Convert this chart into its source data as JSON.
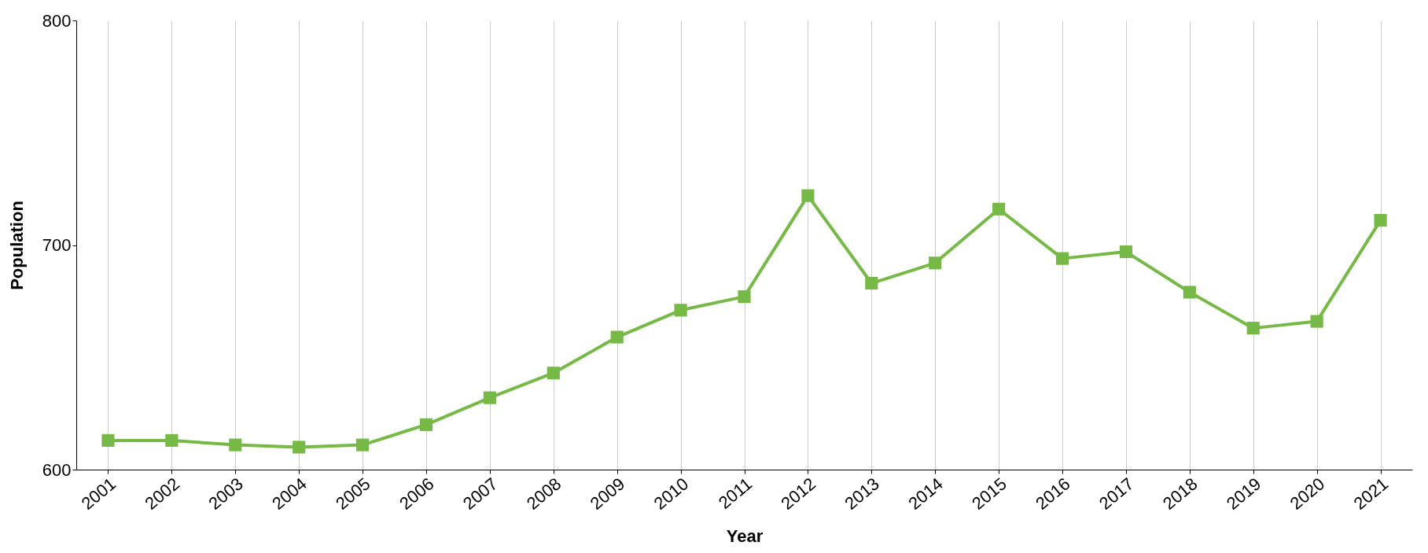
{
  "chart_data": {
    "type": "line",
    "xlabel": "Year",
    "ylabel": "Population",
    "categories": [
      "2001",
      "2002",
      "2003",
      "2004",
      "2005",
      "2006",
      "2007",
      "2008",
      "2009",
      "2010",
      "2011",
      "2012",
      "2013",
      "2014",
      "2015",
      "2016",
      "2017",
      "2018",
      "2019",
      "2020",
      "2021"
    ],
    "series": [
      {
        "color": "#76b947",
        "values": [
          613,
          613,
          611,
          610,
          611,
          620,
          632,
          643,
          659,
          671,
          677,
          722,
          683,
          692,
          716,
          694,
          697,
          679,
          663,
          666,
          711
        ]
      }
    ],
    "ylim": [
      600,
      800
    ],
    "yticks": [
      600,
      700,
      800
    ],
    "grid": "x",
    "marker": "square",
    "line_style": "solid"
  }
}
